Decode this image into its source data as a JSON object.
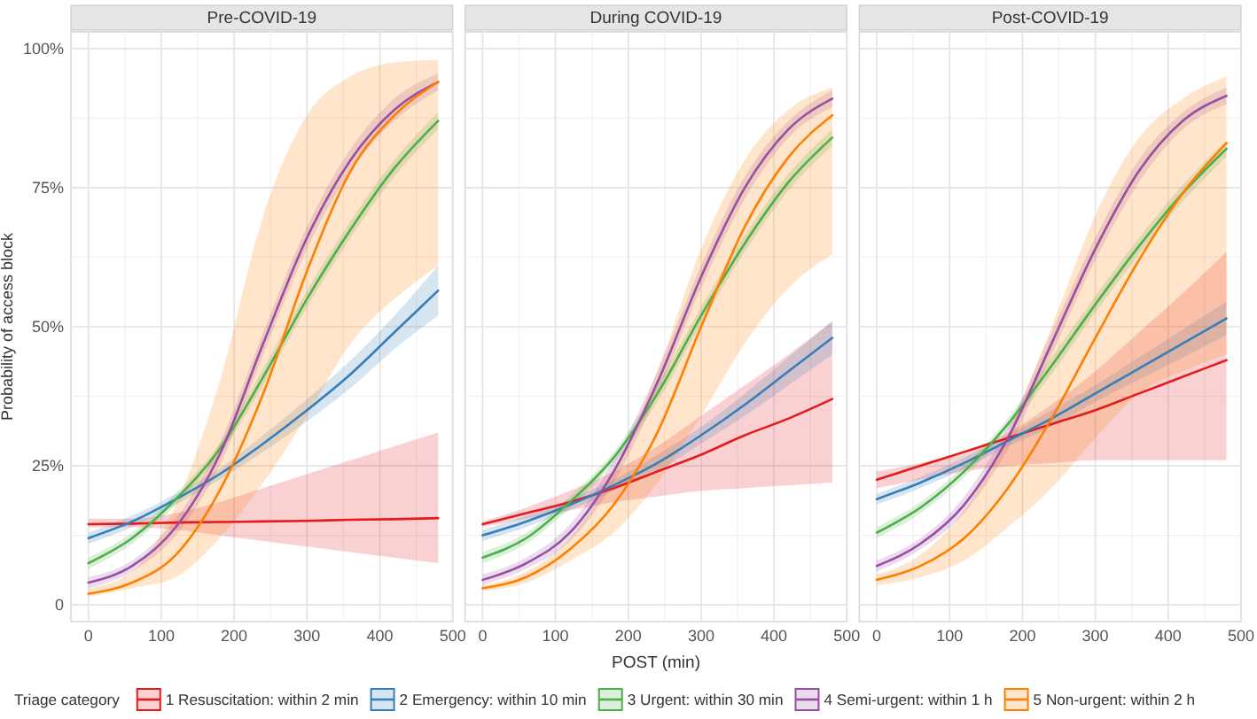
{
  "chart_data": [
    {
      "type": "line",
      "title": "Pre-COVID-19",
      "ylabel": "Probability of access block",
      "legend": "bottom",
      "legend_title": "Triage category",
      "grid": true,
      "line_style": "solid",
      "marker": "none",
      "xlim": [
        -24,
        500
      ],
      "xticks": [
        0,
        100,
        200,
        300,
        400,
        500
      ],
      "ylim": [
        -3,
        103
      ],
      "yticks": [
        {
          "value": 0,
          "label": "0"
        },
        {
          "value": 25,
          "label": "25%"
        },
        {
          "value": 50,
          "label": "50%"
        },
        {
          "value": 75,
          "label": "75%"
        },
        {
          "value": 100,
          "label": "100%"
        }
      ],
      "x": [
        0,
        60,
        120,
        180,
        240,
        300,
        360,
        420,
        480
      ],
      "series": [
        {
          "name": "1 Resuscitation: within 2 min",
          "color": "#e41a1c",
          "values": [
            14.5,
            14.6,
            14.8,
            14.9,
            15,
            15.1,
            15.3,
            15.4,
            15.6
          ],
          "lower": [
            14,
            14,
            13.5,
            12.5,
            11.5,
            10.5,
            9.5,
            8.5,
            7.5
          ],
          "upper": [
            15.5,
            15.5,
            16.5,
            18.5,
            21,
            23.5,
            26,
            28.5,
            31
          ]
        },
        {
          "name": "2 Emergency: within 10 min",
          "color": "#377eb8",
          "values": [
            12,
            15,
            19,
            23.5,
            29,
            35,
            41.5,
            49,
            56.5
          ],
          "lower": [
            11,
            14,
            18,
            22.5,
            27.5,
            33,
            39,
            46,
            52
          ],
          "upper": [
            13,
            16,
            20,
            24.5,
            30.5,
            37,
            44,
            52,
            61
          ]
        },
        {
          "name": "3 Urgent: within 30 min",
          "color": "#4daf4a",
          "values": [
            7.5,
            12,
            19,
            28,
            41,
            55,
            67.5,
            78.5,
            87
          ],
          "lower": [
            6.5,
            11,
            18,
            27,
            39.5,
            53.5,
            66,
            77,
            85.5
          ],
          "upper": [
            8.5,
            13,
            20,
            29,
            42.5,
            56.5,
            69,
            80,
            88.5
          ]
        },
        {
          "name": "4 Semi-urgent: within 1 h",
          "color": "#984ea3",
          "values": [
            4,
            7,
            14,
            27,
            47,
            66,
            80,
            89,
            94
          ],
          "lower": [
            3,
            6,
            12.5,
            25,
            45,
            64,
            78,
            87,
            92.5
          ],
          "upper": [
            5,
            8,
            15.5,
            29,
            49,
            68,
            82,
            91,
            95.5
          ]
        },
        {
          "name": "5 Non-urgent: within 2 h",
          "color": "#ff7f00",
          "values": [
            2,
            4,
            9,
            20.5,
            38,
            60,
            78,
            88,
            94
          ],
          "lower": [
            1.5,
            3,
            5,
            12,
            22,
            34,
            47,
            55,
            61
          ],
          "upper": [
            3,
            6,
            18,
            40,
            70,
            88,
            95,
            97.5,
            98
          ]
        }
      ]
    },
    {
      "type": "line",
      "title": "During COVID-19",
      "xlabel": "POST (min)",
      "tick_labels": "x",
      "grid": true,
      "line_style": "solid",
      "marker": "none",
      "xlim": [
        -24,
        500
      ],
      "xticks": [
        0,
        100,
        200,
        300,
        400,
        500
      ],
      "ylim": [
        -3,
        103
      ],
      "yticks": [
        0,
        25,
        50,
        75,
        100
      ],
      "x": [
        0,
        60,
        120,
        180,
        240,
        300,
        360,
        420,
        480
      ],
      "series": [
        {
          "color": "#e41a1c",
          "values": [
            14.5,
            16.5,
            18.5,
            21,
            24,
            27,
            30.5,
            33.5,
            37
          ],
          "lower": [
            14,
            15.5,
            17,
            18.5,
            19.5,
            20.5,
            21,
            21.5,
            22
          ],
          "upper": [
            15,
            17.5,
            20.5,
            24,
            28.5,
            34,
            39.5,
            45,
            51
          ]
        },
        {
          "color": "#377eb8",
          "values": [
            12.5,
            15,
            18,
            21.5,
            25.5,
            30.5,
            36,
            42,
            48
          ],
          "lower": [
            11.5,
            14,
            17,
            20.5,
            24,
            29,
            34,
            39.5,
            45
          ],
          "upper": [
            13.5,
            16,
            19,
            22.5,
            27,
            32,
            38,
            44.5,
            51
          ]
        },
        {
          "color": "#4daf4a",
          "values": [
            8.5,
            12,
            18.5,
            26.5,
            38,
            52,
            65,
            76,
            84
          ],
          "lower": [
            7.5,
            11,
            17.5,
            25.5,
            36.5,
            50.5,
            63.5,
            74.5,
            82.5
          ],
          "upper": [
            9.5,
            13,
            19.5,
            27.5,
            39.5,
            53.5,
            66.5,
            77.5,
            85.5
          ]
        },
        {
          "color": "#984ea3",
          "values": [
            4.5,
            7.5,
            13,
            24,
            40,
            59,
            75,
            85.5,
            91
          ],
          "lower": [
            3.5,
            6.5,
            11.5,
            22,
            38,
            57,
            73,
            84,
            89.5
          ],
          "upper": [
            5.5,
            8.5,
            14.5,
            26,
            42,
            61,
            77,
            87,
            92.5
          ]
        },
        {
          "color": "#ff7f00",
          "values": [
            3,
            5,
            10,
            18,
            31,
            50,
            68,
            80.5,
            88
          ],
          "lower": [
            2.5,
            4,
            8,
            13,
            22,
            34,
            47,
            57,
            63
          ],
          "upper": [
            3.5,
            6,
            12,
            24,
            42,
            64,
            80,
            89,
            93
          ]
        }
      ]
    },
    {
      "type": "line",
      "title": "Post-COVID-19",
      "tick_labels": "x",
      "grid": true,
      "line_style": "solid",
      "marker": "none",
      "xlim": [
        -24,
        500
      ],
      "xticks": [
        0,
        100,
        200,
        300,
        400,
        500
      ],
      "ylim": [
        -3,
        103
      ],
      "yticks": [
        0,
        25,
        50,
        75,
        100
      ],
      "x": [
        0,
        60,
        120,
        180,
        240,
        300,
        360,
        420,
        480
      ],
      "series": [
        {
          "color": "#e41a1c",
          "values": [
            22.5,
            25,
            27.5,
            30,
            32.5,
            35,
            38,
            41,
            44
          ],
          "lower": [
            21,
            22.5,
            24,
            25,
            25.5,
            26,
            26,
            26,
            26
          ],
          "upper": [
            24,
            25.5,
            27.5,
            31,
            36,
            42,
            49,
            56,
            63.5
          ]
        },
        {
          "color": "#377eb8",
          "values": [
            19,
            22,
            25.5,
            29.5,
            33.5,
            38,
            42.5,
            47,
            51.5
          ],
          "lower": [
            18,
            21,
            24.5,
            28.5,
            32,
            36.5,
            40.5,
            44.5,
            48.5
          ],
          "upper": [
            20,
            23,
            26.5,
            30.5,
            35,
            39.5,
            44.5,
            49.5,
            54.5
          ]
        },
        {
          "color": "#4daf4a",
          "values": [
            13,
            17.5,
            24,
            32.5,
            43,
            54,
            64.5,
            74,
            82
          ],
          "lower": [
            12,
            16.5,
            23,
            31.5,
            41.5,
            52.5,
            63,
            72.5,
            80.5
          ],
          "upper": [
            14,
            18.5,
            25,
            33.5,
            44.5,
            55.5,
            66,
            75.5,
            83.5
          ]
        },
        {
          "color": "#984ea3",
          "values": [
            7,
            11,
            18,
            30,
            47,
            64,
            78,
            87,
            91.5
          ],
          "lower": [
            6,
            10,
            16.5,
            28,
            45,
            62,
            76,
            85.5,
            90
          ],
          "upper": [
            8,
            12,
            19.5,
            32,
            49,
            66,
            80,
            88.5,
            93
          ]
        },
        {
          "color": "#ff7f00",
          "values": [
            4.5,
            7,
            12,
            21,
            33.5,
            48,
            62,
            74,
            83
          ],
          "lower": [
            3.5,
            5,
            8,
            14,
            21,
            30,
            38,
            42,
            45
          ],
          "upper": [
            5.5,
            9,
            17,
            31,
            50,
            70,
            84,
            91,
            95
          ]
        }
      ]
    }
  ]
}
